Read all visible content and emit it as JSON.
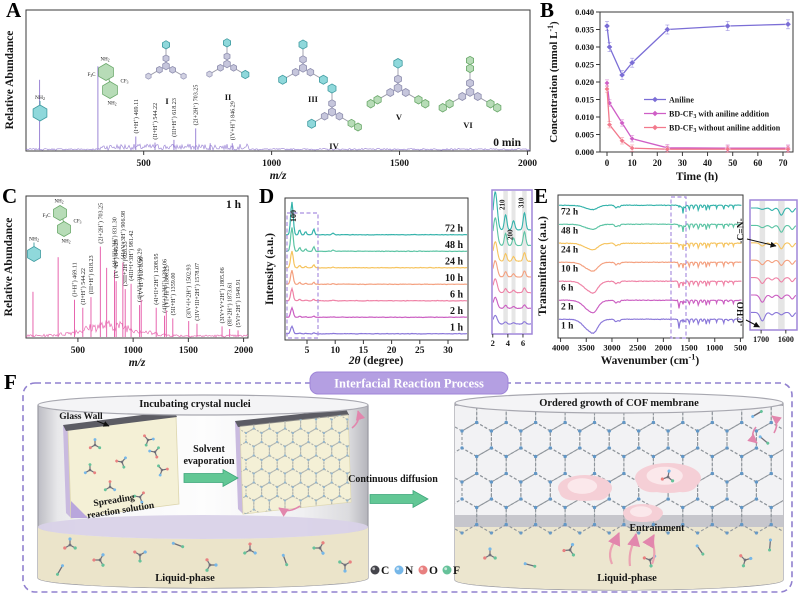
{
  "panels": {
    "a": {
      "label": "A"
    },
    "b": {
      "label": "B"
    },
    "c": {
      "label": "C"
    },
    "d": {
      "label": "D"
    },
    "e": {
      "label": "E"
    },
    "f": {
      "label": "F",
      "title": "Interfacial  Reaction Process",
      "incubating": "Incubating crystal nuclei",
      "glass_wall": "Glass Wall",
      "spreading_1": "Spreading",
      "spreading_2": "reaction solution",
      "solvent_1": "Solvent",
      "solvent_2": "evaporation",
      "continuous": "Continuous diffusion",
      "ordered": "Ordered growth of COF membrane",
      "entrainment": "Entrainment",
      "liquid_left": "Liquid-phase",
      "liquid_right": "Liquid-phase",
      "border_color": "#9180cf",
      "badge_color": "#b49fe2",
      "legend": [
        {
          "atom": "C",
          "color": "#45454c"
        },
        {
          "atom": "N",
          "color": "#76b7e8"
        },
        {
          "atom": "O",
          "color": "#e88080"
        },
        {
          "atom": "F",
          "color": "#66c29a"
        }
      ]
    }
  },
  "chart_data": [
    {
      "panel": "A",
      "type": "mass-spectrum",
      "color": "#9c86d6",
      "time_label": "0 min",
      "xlabel": "m/z",
      "ylabel": "Relative Abundance",
      "x_ticks": [
        500,
        1000,
        1500,
        2000
      ],
      "xlim": [
        40,
        2010
      ],
      "noise_base": 1.5,
      "noise_band": 6,
      "peaks": [
        {
          "mz": 93,
          "h": 0.52
        },
        {
          "mz": 321,
          "h": 0.62
        },
        {
          "mz": 469.11,
          "h": 0.1,
          "label": "(I+H⁺) 469.11"
        },
        {
          "mz": 544.22,
          "h": 0.055,
          "label": "(II+H⁺) 544.22"
        },
        {
          "mz": 618.23,
          "h": 0.075,
          "label": "(III+H⁺) 618.23"
        },
        {
          "mz": 703.25,
          "h": 0.16,
          "label": "(2I+2H⁺) 703.25"
        },
        {
          "mz": 760,
          "h": 0.05
        },
        {
          "mz": 846.29,
          "h": 0.05,
          "label": "(IV+H⁺) 846.29"
        }
      ],
      "molecules": {
        "aniline": "NH₂",
        "bd": [
          "NH₂",
          "F₃C",
          "CF₃",
          "NH₂"
        ]
      },
      "structures": [
        {
          "name": "I",
          "caps": [
            "c",
            "g",
            "g"
          ]
        },
        {
          "name": "II",
          "caps": [
            "c",
            "g",
            "c"
          ]
        },
        {
          "name": "III",
          "caps": [
            "c",
            "c",
            "c"
          ]
        },
        {
          "name": "IV",
          "caps": [
            "c",
            "c",
            "G"
          ]
        },
        {
          "name": "V",
          "caps": [
            "c",
            "G",
            "G"
          ]
        },
        {
          "name": "VI",
          "caps": [
            "G",
            "G",
            "G"
          ]
        }
      ]
    },
    {
      "panel": "B",
      "type": "line",
      "xlabel": "Time (h)",
      "ylabel": "Concentration (mmol L⁻¹)",
      "xlim": [
        0,
        72
      ],
      "ylim": [
        0,
        0.04
      ],
      "x_ticks": [
        0,
        10,
        20,
        30,
        40,
        50,
        60,
        70
      ],
      "y_tick_step": 0.005,
      "x": [
        0,
        1,
        6,
        10,
        24,
        48,
        72
      ],
      "series": [
        {
          "name": "Aniline",
          "color": "#7b6ed6",
          "values": [
            0.036,
            0.03,
            0.022,
            0.0255,
            0.035,
            0.036,
            0.0365
          ]
        },
        {
          "name": "BD-CF₃ with aniline addition",
          "color": "#cf5ec6",
          "values": [
            0.0197,
            0.014,
            0.0083,
            0.0038,
            0.0012,
            0.0011,
            0.0011
          ]
        },
        {
          "name": "BD-CF₃ without aniline addition",
          "color": "#f2798c",
          "values": [
            0.018,
            0.0078,
            0.0032,
            0.0011,
            0.0008,
            0.0008,
            0.0008
          ]
        }
      ]
    },
    {
      "panel": "C",
      "type": "mass-spectrum",
      "color": "#e765ae",
      "time_label": "1 h",
      "xlabel": "m/z",
      "ylabel": "Relative Abundance",
      "x_ticks": [
        500,
        1000,
        1500,
        2000
      ],
      "xlim": [
        30,
        2040
      ],
      "noise_base": 2.2,
      "hump": [
        790,
        230,
        9,
        6
      ],
      "peaks": [
        {
          "mz": 93,
          "h": 0.34
        },
        {
          "mz": 321,
          "h": 0.6
        },
        {
          "mz": 469.11,
          "h": 0.28,
          "label": "(I+H⁺) 469.11"
        },
        {
          "mz": 544.22,
          "h": 0.22,
          "label": "(II+H⁺) 544.22"
        },
        {
          "mz": 618.23,
          "h": 0.3,
          "label": "(III+H⁺) 618.23"
        },
        {
          "mz": 703.25,
          "h": 0.68,
          "label": "(2I+2H⁺) 703.25"
        },
        {
          "mz": 760,
          "h": 0.52
        },
        {
          "mz": 831.3,
          "h": 0.5,
          "label": "(4I+III+3H⁺) 831.30"
        },
        {
          "mz": 846.29,
          "h": 0.42,
          "label": "(IV+H⁺) 846.29"
        },
        {
          "mz": 906.98,
          "h": 0.56,
          "label": "(4I+V+3H⁺) 906.98"
        },
        {
          "mz": 928.33,
          "h": 0.36,
          "label": "(3III+2H⁺) 928.33"
        },
        {
          "mz": 981.42,
          "h": 0.4,
          "label": "(4III+I+3H⁺) 981.42"
        },
        {
          "mz": 1058.29,
          "h": 0.24,
          "label": "(4I+VI+3H⁺) 1058.29"
        },
        {
          "mz": 1073.3,
          "h": 0.28,
          "label": "(V+H⁺) 1073.30"
        },
        {
          "mz": 1208.95,
          "h": 0.22,
          "label": "(4I+II+2H⁺) 1208.95"
        },
        {
          "mz": 1284.06,
          "h": 0.16,
          "label": "(4IV+I+3H⁺) 1284.06"
        },
        {
          "mz": 1300.25,
          "h": 0.2,
          "label": "(VI+H⁺) 1300.25"
        },
        {
          "mz": 1359.0,
          "h": 0.14,
          "label": "(5II+H⁺) 1359.00"
        },
        {
          "mz": 1502.93,
          "h": 0.12,
          "label": "(3IV+I+2H⁺) 1502.93"
        },
        {
          "mz": 1578.07,
          "h": 0.1,
          "label": "(3IV+III+2H⁺) 1578.07"
        },
        {
          "mz": 1805.06,
          "h": 0.08,
          "label": "(3IV+V+2H⁺) 1805.06"
        },
        {
          "mz": 1873.61,
          "h": 0.06,
          "label": "(8I+2H⁺) 1873.61"
        },
        {
          "mz": 1949.91,
          "h": 0.05,
          "label": "(5VI+2H⁺) 1949.91"
        }
      ],
      "molecules": {
        "aniline": "NH₂",
        "bd": [
          "NH₂",
          "F₃C",
          "CF₃",
          "NH₂"
        ]
      }
    },
    {
      "panel": "D",
      "type": "xrd",
      "xlabel": "2θ (degree)",
      "ylabel": "Intensity (a.u.)",
      "x_ticks": [
        5,
        10,
        15,
        20,
        25,
        30
      ],
      "peak_label": "100",
      "main_peak": 2.33,
      "minor_peaks": [
        3.7,
        4.75,
        6.2,
        9.6
      ],
      "minor_amps": [
        5,
        3,
        6,
        1.5
      ],
      "box_color": "#a98fe0",
      "inset": {
        "x_ticks": [
          2,
          4,
          6
        ],
        "plane_labels": [
          "210",
          "310",
          "200"
        ],
        "minor_amps": [
          15,
          9,
          17,
          3
        ],
        "frame_color": "#9f86d8"
      },
      "series": [
        {
          "label": "72 h",
          "color": "#35b3ab",
          "peak_h": 33,
          "bump_scale": 1
        },
        {
          "label": "48 h",
          "color": "#5cc4a4",
          "peak_h": 24,
          "bump_scale": 0.8
        },
        {
          "label": "24 h",
          "color": "#f6c45f",
          "peak_h": 17,
          "bump_scale": 0.5
        },
        {
          "label": "10 h",
          "color": "#f4a07f",
          "peak_h": 14,
          "bump_scale": 0.35
        },
        {
          "label": "6 h",
          "color": "#ef82a6",
          "peak_h": 12,
          "bump_scale": 0.27
        },
        {
          "label": "2 h",
          "color": "#cb5fc2",
          "peak_h": 9.5,
          "bump_scale": 0.2
        },
        {
          "label": "1 h",
          "color": "#8a77d9",
          "peak_h": 7.5,
          "bump_scale": 0.14
        }
      ]
    },
    {
      "panel": "E",
      "type": "ftir",
      "xlabel": "Wavenumber (cm⁻¹)",
      "ylabel": "Transmittance (a.u.)",
      "x_ticks": [
        4000,
        3500,
        3000,
        2500,
        2000,
        1500,
        1000,
        500
      ],
      "box_color": "#a98fe0",
      "bands": [
        [
          3420,
          130,
          12,
          "oh"
        ],
        [
          3340,
          60,
          4,
          "oh"
        ],
        [
          2920,
          26,
          2.6
        ],
        [
          2852,
          18,
          1.8
        ],
        [
          1695,
          11,
          10,
          "cho"
        ],
        [
          1656,
          10,
          2
        ],
        [
          1618,
          9,
          9,
          "cn"
        ],
        [
          1578,
          8,
          3.5
        ],
        [
          1497,
          9,
          4.5
        ],
        [
          1410,
          9,
          3.5
        ],
        [
          1318,
          11,
          5
        ],
        [
          1237,
          8,
          3
        ],
        [
          1163,
          9,
          5.5
        ],
        [
          1107,
          8,
          3.5
        ],
        [
          962,
          7,
          3
        ],
        [
          827,
          8,
          4.5
        ],
        [
          737,
          7,
          2.5
        ],
        [
          637,
          8,
          3
        ]
      ],
      "inset": {
        "x_ticks": [
          "1700",
          "1600"
        ],
        "frame_color": "#9f86d8",
        "bands": [
          [
            1695,
            9,
            9,
            "cho"
          ],
          [
            1656,
            7,
            2.4
          ],
          [
            1618,
            8,
            8,
            "cn"
          ],
          [
            1574,
            7,
            4
          ]
        ],
        "annotations": {
          "cn": "-C=N-",
          "cho": "-CHO"
        }
      },
      "series": [
        {
          "label": "72 h",
          "color": "#35b3ab",
          "oh": 0.3,
          "cho": 0.15,
          "cn": 0.9
        },
        {
          "label": "48 h",
          "color": "#5cc4a4",
          "oh": 0.35,
          "cho": 0.25,
          "cn": 0.85
        },
        {
          "label": "24 h",
          "color": "#f6c45f",
          "oh": 0.45,
          "cho": 0.35,
          "cn": 0.75
        },
        {
          "label": "10 h",
          "color": "#f4a07f",
          "oh": 0.6,
          "cho": 0.5,
          "cn": 0.65
        },
        {
          "label": "6 h",
          "color": "#ef82a6",
          "oh": 0.8,
          "cho": 0.65,
          "cn": 0.55
        },
        {
          "label": "2 h",
          "color": "#cb5fc2",
          "oh": 0.85,
          "cho": 0.8,
          "cn": 0.45
        },
        {
          "label": "1 h",
          "color": "#8a77d9",
          "oh": 0.95,
          "cho": 0.95,
          "cn": 0.3
        }
      ]
    }
  ]
}
